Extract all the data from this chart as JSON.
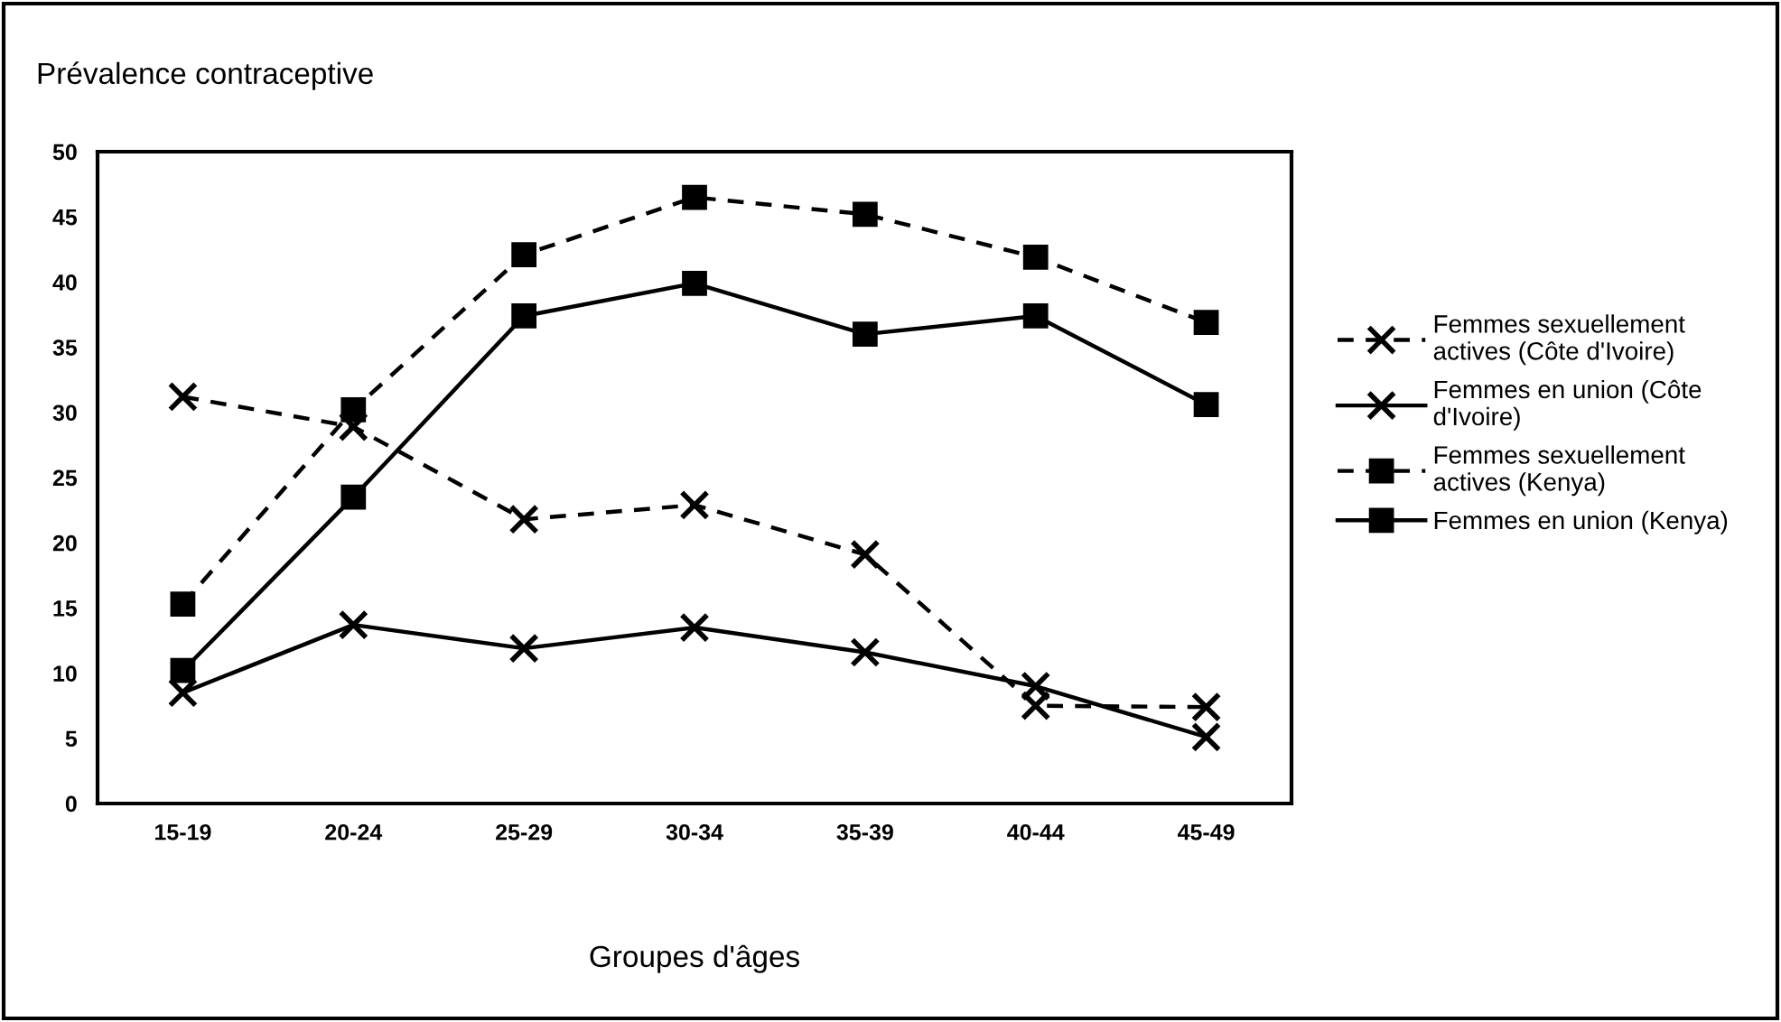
{
  "chart_data": {
    "type": "line",
    "title": "Prévalence contraceptive",
    "xlabel": "Groupes d'âges",
    "categories": [
      "15-19",
      "20-24",
      "25-29",
      "30-34",
      "35-39",
      "40-44",
      "45-49"
    ],
    "series": [
      {
        "name": "Femmes sexuellement actives (Côte d'Ivoire)",
        "color": "#000000",
        "marker": "cross",
        "line_style": "dashed",
        "values": [
          31.2,
          28.9,
          21.8,
          22.9,
          19.1,
          7.5,
          7.4
        ]
      },
      {
        "name": "Femmes en union (Côte d'Ivoire)",
        "color": "#000000",
        "marker": "cross",
        "line_style": "solid",
        "values": [
          8.5,
          13.7,
          11.9,
          13.5,
          11.6,
          9.0,
          5.1
        ]
      },
      {
        "name": "Femmes sexuellement actives (Kenya)",
        "color": "#000000",
        "marker": "square",
        "line_style": "dashed",
        "values": [
          15.3,
          30.2,
          42.1,
          46.5,
          45.2,
          41.9,
          36.9
        ]
      },
      {
        "name": "Femmes en union (Kenya)",
        "color": "#000000",
        "marker": "square",
        "line_style": "solid",
        "values": [
          10.2,
          23.5,
          37.4,
          39.9,
          36.0,
          37.4,
          30.6
        ]
      }
    ],
    "ylim": [
      0,
      50
    ],
    "yticks": [
      0,
      5,
      10,
      15,
      20,
      25,
      30,
      35,
      40,
      45,
      50
    ],
    "grid": false,
    "legend": "right"
  }
}
